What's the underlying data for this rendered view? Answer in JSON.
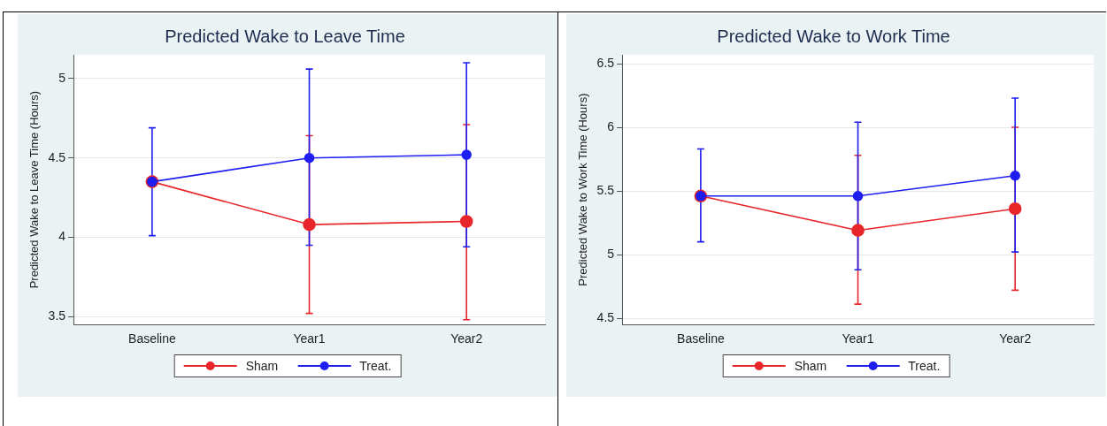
{
  "chart_data": [
    {
      "type": "line",
      "title": "Predicted Wake to Leave Time",
      "ylabel": "Predicted Wake to Leave Time (Hours)",
      "categories": [
        "Baseline",
        "Year1",
        "Year2"
      ],
      "ylim": [
        3.45,
        5.15
      ],
      "yticks": [
        3.5,
        4,
        4.5,
        5
      ],
      "grid": "y",
      "legend": "bottom",
      "marker": "circle",
      "series": [
        {
          "name": "Sham",
          "color": "#e8262a",
          "values": [
            4.35,
            4.08,
            4.1
          ],
          "errors": [
            null,
            [
              3.52,
              4.64
            ],
            [
              3.48,
              4.71
            ]
          ]
        },
        {
          "name": "Treat.",
          "color": "#1e1ef0",
          "values": [
            4.35,
            4.5,
            4.52
          ],
          "errors": [
            [
              4.01,
              4.69
            ],
            [
              3.95,
              5.06
            ],
            [
              3.94,
              5.1
            ]
          ]
        }
      ]
    },
    {
      "type": "line",
      "title": "Predicted Wake to Work Time",
      "ylabel": "Predicted Wake to Work Time (Hours)",
      "categories": [
        "Baseline",
        "Year1",
        "Year2"
      ],
      "ylim": [
        4.45,
        6.57
      ],
      "yticks": [
        4.5,
        5,
        5.5,
        6,
        6.5
      ],
      "grid": "y",
      "legend": "bottom",
      "marker": "circle",
      "series": [
        {
          "name": "Sham",
          "color": "#e8262a",
          "values": [
            5.46,
            5.19,
            5.36
          ],
          "errors": [
            null,
            [
              4.61,
              5.78
            ],
            [
              4.72,
              6.0
            ]
          ]
        },
        {
          "name": "Treat.",
          "color": "#1e1ef0",
          "values": [
            5.46,
            5.46,
            5.62
          ],
          "errors": [
            [
              5.1,
              5.83
            ],
            [
              4.88,
              6.04
            ],
            [
              5.02,
              6.23
            ]
          ]
        }
      ]
    }
  ]
}
